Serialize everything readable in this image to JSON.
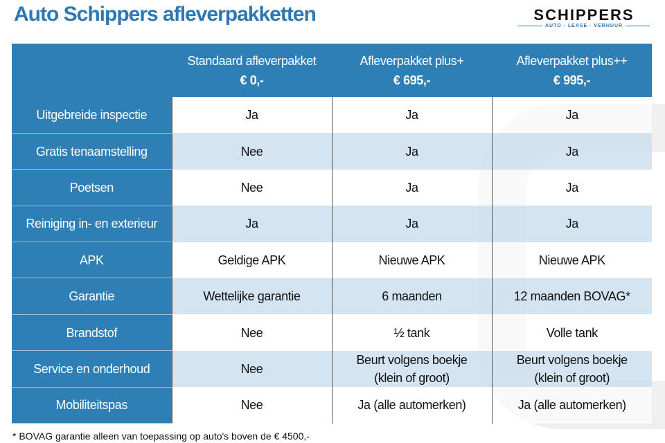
{
  "title": "Auto Schippers afleverpakketten",
  "logo": {
    "main": "SCHIPPERS",
    "sub": "AUTO - LEASE - VERHUUR"
  },
  "colors": {
    "accent": "#2e7fb6",
    "row_alt": "#cde0ef"
  },
  "table": {
    "columns": [
      {
        "name": "Standaard afleverpakket",
        "price": "€ 0,-"
      },
      {
        "name": "Afleverpakket plus+",
        "price": "€ 695,-"
      },
      {
        "name": "Afleverpakket plus++",
        "price": "€ 995,-"
      }
    ],
    "rows": [
      {
        "label": "Uitgebreide inspectie",
        "values": [
          "Ja",
          "Ja",
          "Ja"
        ]
      },
      {
        "label": "Gratis tenaamstelling",
        "values": [
          "Nee",
          "Ja",
          "Ja"
        ]
      },
      {
        "label": "Poetsen",
        "values": [
          "Nee",
          "Ja",
          "Ja"
        ]
      },
      {
        "label": "Reiniging in- en exterieur",
        "values": [
          "Ja",
          "Ja",
          "Ja"
        ]
      },
      {
        "label": "APK",
        "values": [
          "Geldige APK",
          "Nieuwe APK",
          "Nieuwe APK"
        ]
      },
      {
        "label": "Garantie",
        "values": [
          "Wettelijke garantie",
          "6 maanden",
          "12 maanden BOVAG*"
        ]
      },
      {
        "label": "Brandstof",
        "values": [
          "Nee",
          "½ tank",
          "Volle tank"
        ]
      },
      {
        "label": "Service en onderhoud",
        "values": [
          "Nee",
          "Beurt volgens boekje\n(klein of groot)",
          "Beurt volgens boekje\n(klein of groot)"
        ]
      },
      {
        "label": "Mobiliteitspas",
        "values": [
          "Nee",
          "Ja (alle automerken)",
          "Ja (alle automerken)"
        ]
      }
    ]
  },
  "footnote": "* BOVAG garantie alleen van toepassing op auto's boven de € 4500,-"
}
